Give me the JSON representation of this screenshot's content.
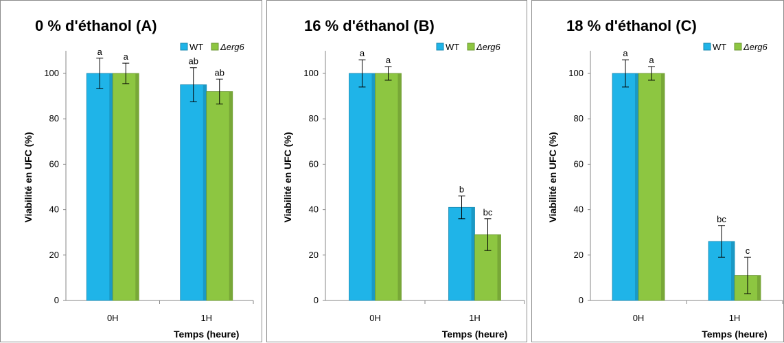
{
  "colors": {
    "wt": "#1fb4e8",
    "erg6": "#8dc641",
    "axis": "#868686"
  },
  "legend": {
    "wt_label": "WT",
    "erg6_label": "Δerg6"
  },
  "chart_data": [
    {
      "type": "bar",
      "title": "0 % d'éthanol (A)",
      "xlabel": "Temps (heure)",
      "ylabel": "Viabilité en UFC (%)",
      "ylim": [
        0,
        100
      ],
      "yticks": [
        "0",
        "20",
        "40",
        "60",
        "80",
        "100"
      ],
      "categories": [
        "0H",
        "1H"
      ],
      "series": [
        {
          "name": "WT",
          "values": [
            100,
            95
          ],
          "errors": [
            6.7,
            7.5
          ],
          "letters": [
            "a",
            "ab"
          ]
        },
        {
          "name": "Δerg6",
          "values": [
            100,
            92
          ],
          "errors": [
            4.5,
            5.5
          ],
          "letters": [
            "a",
            "ab"
          ]
        }
      ],
      "legend_position": "top-right"
    },
    {
      "type": "bar",
      "title": "16 % d'éthanol (B)",
      "xlabel": "Temps (heure)",
      "ylabel": "Viabilité en UFC (%)",
      "ylim": [
        0,
        100
      ],
      "yticks": [
        "0",
        "20",
        "40",
        "60",
        "80",
        "100"
      ],
      "categories": [
        "0H",
        "1H"
      ],
      "series": [
        {
          "name": "WT",
          "values": [
            100,
            41
          ],
          "errors": [
            6,
            5
          ],
          "letters": [
            "a",
            "b"
          ]
        },
        {
          "name": "Δerg6",
          "values": [
            100,
            29
          ],
          "errors": [
            3,
            7
          ],
          "letters": [
            "a",
            "bc"
          ]
        }
      ],
      "legend_position": "top-right"
    },
    {
      "type": "bar",
      "title": "18 % d'éthanol (C)",
      "xlabel": "Temps (heure)",
      "ylabel": "Viabilité en UFC (%)",
      "ylim": [
        0,
        100
      ],
      "yticks": [
        "0",
        "20",
        "40",
        "60",
        "80",
        "100"
      ],
      "categories": [
        "0H",
        "1H"
      ],
      "series": [
        {
          "name": "WT",
          "values": [
            100,
            26
          ],
          "errors": [
            6,
            7
          ],
          "letters": [
            "a",
            "bc"
          ]
        },
        {
          "name": "Δerg6",
          "values": [
            100,
            11
          ],
          "errors": [
            3,
            8
          ],
          "letters": [
            "a",
            "c"
          ]
        }
      ],
      "legend_position": "top-right"
    }
  ]
}
